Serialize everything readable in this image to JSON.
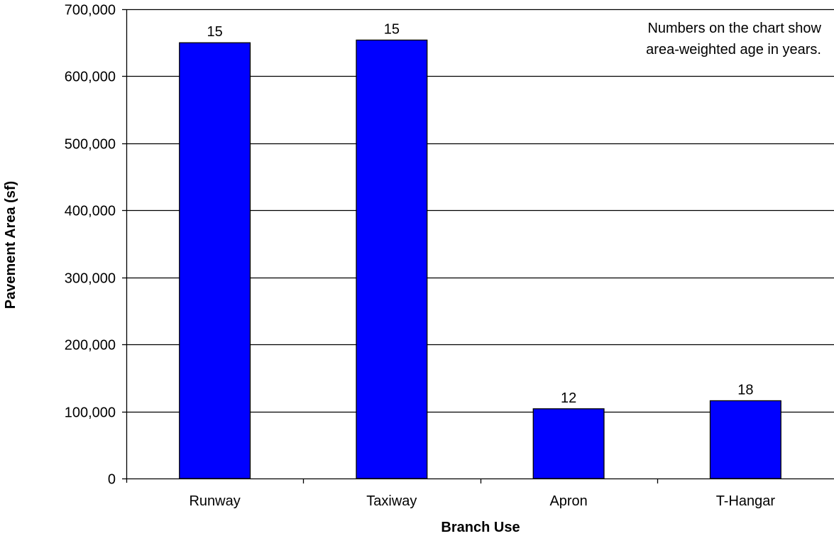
{
  "chart_data": {
    "type": "bar",
    "categories": [
      "Runway",
      "Taxiway",
      "Apron",
      "T-Hangar"
    ],
    "series": [
      {
        "values": [
          650000,
          654000,
          104000,
          116000
        ],
        "data_labels": [
          "15",
          "15",
          "12",
          "18"
        ],
        "color": "#0000ff"
      }
    ],
    "xlabel": "Branch Use",
    "ylabel": "Pavement Area (sf)",
    "ylim": [
      0,
      700000
    ],
    "yticks": [
      0,
      100000,
      200000,
      300000,
      400000,
      500000,
      600000,
      700000
    ],
    "ytick_labels": [
      "0",
      "100,000",
      "200,000",
      "300,000",
      "400,000",
      "500,000",
      "600,000",
      "700,000"
    ],
    "grid": "horizontal",
    "annotation": [
      "Numbers on the chart show",
      "area-weighted  age in years."
    ],
    "annotation_placement": "top-right",
    "bar_edge_color": "#000000",
    "grid_color": "#000000"
  }
}
